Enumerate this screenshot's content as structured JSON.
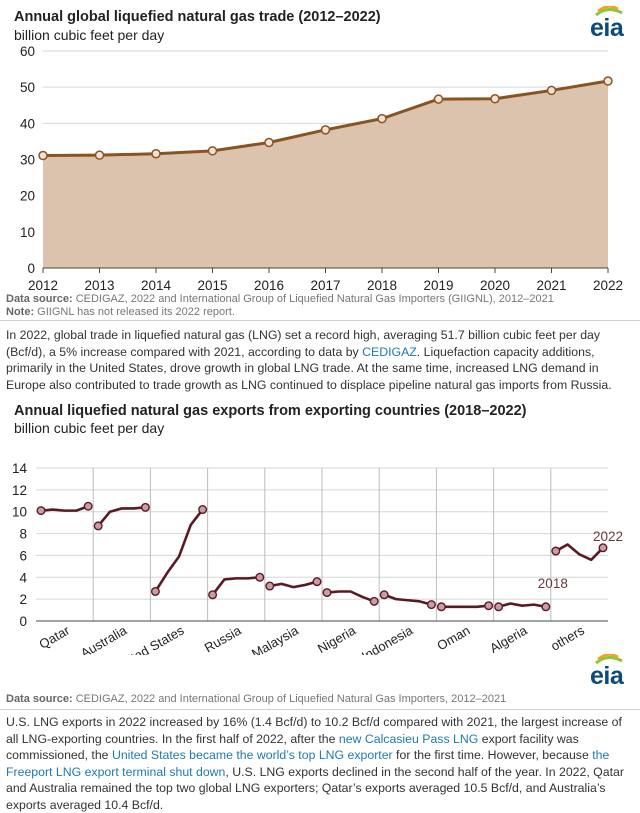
{
  "brand": {
    "logo_text": "eia"
  },
  "chart1": {
    "title": "Annual global liquefied natural gas trade (2012–2022)",
    "subtitle": "billion cubic feet per day",
    "source_label": "Data source:",
    "source_text": "CEDIGAZ, 2022 and International Group of Liquefied Natural Gas Importers (GIIGNL), 2012–2021",
    "note_label": "Note:",
    "note_text": "GIIGNL has not released its 2022 report."
  },
  "paragraph1": {
    "part1": "In 2022, global trade in liquefied natural gas (LNG) set a record high, averaging 51.7 billion cubic feet per day (Bcf/d), a 5% increase compared with 2021, according to data by ",
    "link_cedigaz": "CEDIGAZ",
    "part2": ". Liquefaction capacity additions, primarily in the United States, drove growth in global LNG trade. At the same time, increased LNG demand in Europe also contributed to trade growth as LNG continued to displace pipeline natural gas imports from Russia."
  },
  "chart2": {
    "title": "Annual liquefied natural gas exports from exporting countries (2018–2022)",
    "subtitle": "billion cubic feet per day",
    "source_label": "Data source:",
    "source_text": "CEDIGAZ, 2022 and International Group of Liquefied Natural Gas Importers, 2012–2021"
  },
  "paragraph2": {
    "part1": "U.S. LNG exports in 2022 increased by 16% (1.4 Bcf/d) to 10.2 Bcf/d compared with 2021, the largest increase of all LNG-exporting countries. In the first half of 2022, after the ",
    "link_calcasieu": "new Calcasieu Pass LNG",
    "part2": " export facility was commissioned, the ",
    "link_top_exporter": "United States became the world’s top LNG exporter",
    "part3": " for the first time. However, because ",
    "link_freeport": "the Freeport LNG export terminal shut down",
    "part4": ", U.S. LNG exports declined in the second half of the year. In 2022, Qatar and Australia remained the top two global LNG exporters; Qatar’s exports averaged 10.5 Bcf/d, and Australia’s exports averaged 10.4 Bcf/d."
  },
  "colors": {
    "area_fill": "#dcc3ad",
    "line1": "#8a5322",
    "line2": "#5a1a24",
    "marker_fill": "#c99da4",
    "grid": "#d6d6d6",
    "link": "#1f78b4"
  },
  "chart_data": [
    {
      "type": "area",
      "title": "Annual global liquefied natural gas trade (2012–2022)",
      "ylabel": "billion cubic feet per day",
      "x": [
        "2012",
        "2013",
        "2014",
        "2015",
        "2016",
        "2017",
        "2018",
        "2019",
        "2020",
        "2021",
        "2022"
      ],
      "values": [
        31.1,
        31.2,
        31.6,
        32.4,
        34.7,
        38.2,
        41.3,
        46.7,
        46.8,
        49.1,
        51.7
      ],
      "ylim": [
        0,
        60
      ],
      "yticks": [
        "0",
        "10",
        "20",
        "30",
        "40",
        "50",
        "60"
      ],
      "grid": true
    },
    {
      "type": "line",
      "title": "Annual liquefied natural gas exports from exporting countries (2018–2022)",
      "ylabel": "billion cubic feet per day",
      "ylim": [
        0,
        14
      ],
      "yticks": [
        "0",
        "2",
        "4",
        "6",
        "8",
        "10",
        "12",
        "14"
      ],
      "grid": true,
      "annotations": {
        "start_year": "2018",
        "end_year": "2022"
      },
      "series": [
        {
          "name": "Qatar",
          "values": [
            10.1,
            10.2,
            10.1,
            10.1,
            10.5
          ]
        },
        {
          "name": "Australia",
          "values": [
            8.7,
            10.0,
            10.3,
            10.3,
            10.4
          ]
        },
        {
          "name": "United States",
          "values": [
            2.7,
            4.4,
            5.9,
            8.8,
            10.2
          ]
        },
        {
          "name": "Russia",
          "values": [
            2.4,
            3.8,
            3.9,
            3.9,
            4.0
          ]
        },
        {
          "name": "Malaysia",
          "values": [
            3.2,
            3.4,
            3.1,
            3.3,
            3.6
          ]
        },
        {
          "name": "Nigeria",
          "values": [
            2.6,
            2.7,
            2.7,
            2.2,
            1.8
          ]
        },
        {
          "name": "Indonesia",
          "values": [
            2.4,
            2.0,
            1.9,
            1.8,
            1.5
          ]
        },
        {
          "name": "Oman",
          "values": [
            1.3,
            1.3,
            1.3,
            1.3,
            1.4
          ]
        },
        {
          "name": "Algeria",
          "values": [
            1.3,
            1.6,
            1.4,
            1.5,
            1.3
          ]
        },
        {
          "name": "others",
          "values": [
            6.4,
            7.0,
            6.1,
            5.6,
            6.7
          ]
        }
      ]
    }
  ]
}
